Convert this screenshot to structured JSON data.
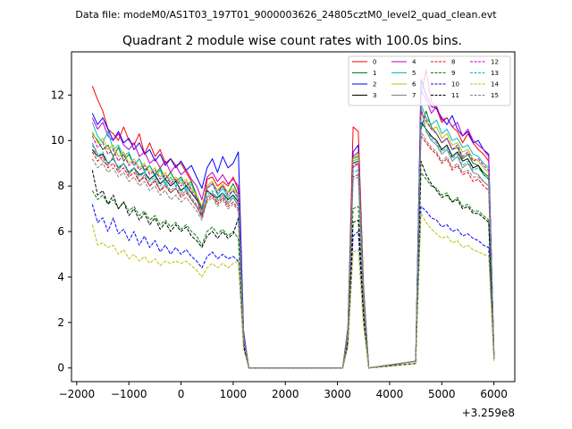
{
  "figure": {
    "suptitle": "Data file: modeM0/AS1T03_197T01_9000003626_24805cztM0_level2_quad_clean.evt"
  },
  "chart_data": {
    "type": "line",
    "title": "Quadrant 2 module wise count rates with 100.0s bins.",
    "xlabel": "",
    "ylabel": "",
    "x_offset_label": "+3.259e8",
    "xlim": [
      -2100,
      6400
    ],
    "ylim": [
      -0.6,
      13.9
    ],
    "xticks": [
      -2000,
      -1000,
      0,
      1000,
      2000,
      3000,
      4000,
      5000,
      6000
    ],
    "xtick_labels": [
      "−2000",
      "−1000",
      "0",
      "1000",
      "2000",
      "3000",
      "4000",
      "5000",
      "6000"
    ],
    "yticks": [
      0,
      2,
      4,
      6,
      8,
      10,
      12
    ],
    "ytick_labels": [
      "0",
      "2",
      "4",
      "6",
      "8",
      "10",
      "12"
    ],
    "grid": false,
    "legend_position": "top-right",
    "legend_columns": 4,
    "x": [
      -1700,
      -1600,
      -1500,
      -1400,
      -1300,
      -1200,
      -1100,
      -1000,
      -900,
      -800,
      -700,
      -600,
      -500,
      -400,
      -300,
      -200,
      -100,
      0,
      100,
      200,
      300,
      400,
      500,
      600,
      700,
      800,
      900,
      1000,
      1100,
      1200,
      1300,
      3100,
      3200,
      3300,
      3400,
      3500,
      3600,
      4500,
      4600,
      4700,
      4800,
      4900,
      5000,
      5100,
      5200,
      5300,
      5400,
      5500,
      5600,
      5700,
      5800,
      5900,
      6000
    ],
    "series": [
      {
        "name": "0",
        "color": "#ff0000",
        "dash": "solid",
        "values": [
          12.4,
          11.8,
          11.3,
          10.5,
          10.3,
          10.0,
          10.6,
          10.0,
          9.8,
          10.3,
          9.4,
          9.9,
          9.3,
          9.6,
          9.0,
          9.2,
          8.9,
          9.0,
          8.6,
          8.2,
          7.5,
          6.7,
          8.3,
          8.4,
          8.0,
          8.2,
          8.0,
          8.4,
          7.8,
          1.5,
          0.0,
          0.0,
          1.8,
          10.6,
          10.4,
          3.6,
          0.0,
          0.3,
          12.0,
          13.1,
          11.7,
          11.4,
          10.8,
          11.0,
          10.6,
          10.4,
          9.9,
          10.3,
          9.9,
          9.6,
          9.4,
          9.1,
          0.5
        ]
      },
      {
        "name": "1",
        "color": "#008000",
        "dash": "solid",
        "values": [
          10.3,
          10.0,
          9.6,
          9.8,
          9.3,
          9.7,
          9.1,
          9.4,
          8.9,
          9.2,
          8.7,
          8.9,
          8.5,
          8.8,
          8.3,
          8.6,
          8.2,
          8.4,
          8.0,
          8.2,
          7.6,
          7.0,
          8.0,
          8.2,
          7.8,
          8.0,
          7.7,
          8.1,
          7.6,
          1.4,
          0.0,
          0.0,
          1.6,
          9.2,
          9.3,
          3.3,
          0.0,
          0.3,
          10.5,
          11.3,
          10.6,
          10.3,
          9.9,
          10.1,
          9.6,
          9.7,
          9.2,
          9.4,
          9.0,
          8.9,
          8.6,
          8.4,
          0.5
        ]
      },
      {
        "name": "2",
        "color": "#0000ff",
        "dash": "solid",
        "values": [
          11.2,
          10.7,
          11.0,
          10.5,
          10.0,
          10.4,
          9.9,
          10.1,
          9.6,
          9.9,
          9.4,
          9.6,
          9.1,
          9.4,
          8.9,
          9.2,
          8.8,
          9.1,
          8.7,
          8.9,
          8.4,
          7.9,
          8.8,
          9.2,
          8.6,
          9.3,
          8.8,
          9.0,
          9.5,
          1.6,
          0.0,
          0.0,
          1.7,
          9.5,
          9.8,
          3.4,
          0.0,
          0.3,
          12.7,
          12.0,
          11.5,
          11.4,
          11.0,
          10.7,
          11.1,
          10.5,
          10.2,
          10.4,
          9.9,
          10.0,
          9.6,
          9.4,
          0.6
        ]
      },
      {
        "name": "3",
        "color": "#000000",
        "dash": "solid",
        "values": [
          9.6,
          9.3,
          9.4,
          9.0,
          9.2,
          8.8,
          9.0,
          8.6,
          8.8,
          8.5,
          8.6,
          8.3,
          8.5,
          8.1,
          8.3,
          8.0,
          8.2,
          7.8,
          8.0,
          7.7,
          7.4,
          7.0,
          7.8,
          7.6,
          7.5,
          7.7,
          7.4,
          7.6,
          7.3,
          1.3,
          0.0,
          0.0,
          1.5,
          9.0,
          9.1,
          3.2,
          0.0,
          0.3,
          10.8,
          10.5,
          10.2,
          10.0,
          9.6,
          9.8,
          9.3,
          9.5,
          9.1,
          9.2,
          8.8,
          8.9,
          8.5,
          8.3,
          0.5
        ]
      },
      {
        "name": "4",
        "color": "#bf00bf",
        "dash": "solid",
        "values": [
          11.0,
          10.5,
          10.8,
          10.2,
          10.0,
          10.3,
          9.8,
          9.6,
          9.9,
          9.3,
          9.5,
          9.0,
          9.2,
          8.8,
          9.1,
          8.6,
          8.9,
          8.5,
          8.7,
          8.3,
          8.0,
          7.4,
          8.4,
          8.6,
          8.2,
          8.5,
          8.1,
          8.3,
          8.0,
          1.5,
          0.0,
          0.0,
          1.7,
          9.3,
          9.5,
          3.3,
          0.0,
          0.3,
          12.2,
          11.8,
          11.2,
          11.5,
          10.9,
          11.0,
          10.6,
          10.8,
          10.2,
          10.5,
          10.0,
          9.8,
          9.6,
          9.3,
          0.6
        ]
      },
      {
        "name": "5",
        "color": "#00bfbf",
        "dash": "solid",
        "values": [
          10.8,
          10.2,
          9.9,
          10.4,
          9.6,
          9.8,
          9.3,
          9.5,
          8.9,
          9.2,
          8.6,
          8.9,
          8.4,
          8.7,
          8.1,
          8.4,
          8.0,
          8.3,
          7.8,
          8.1,
          7.5,
          6.9,
          7.9,
          8.1,
          7.6,
          7.9,
          7.5,
          7.8,
          7.4,
          1.4,
          0.0,
          0.0,
          1.6,
          9.1,
          9.2,
          3.3,
          0.0,
          0.3,
          11.6,
          11.0,
          10.7,
          10.9,
          10.3,
          10.5,
          10.0,
          10.1,
          9.7,
          9.8,
          9.4,
          9.3,
          9.0,
          8.8,
          0.5
        ]
      },
      {
        "name": "6",
        "color": "#bfbf00",
        "dash": "solid",
        "values": [
          10.4,
          9.9,
          10.1,
          9.6,
          9.8,
          9.3,
          9.5,
          9.0,
          9.2,
          8.8,
          9.0,
          8.6,
          8.8,
          8.4,
          8.6,
          8.2,
          8.4,
          8.1,
          8.3,
          7.9,
          7.6,
          7.1,
          8.0,
          8.2,
          7.8,
          8.1,
          7.7,
          7.9,
          7.6,
          1.4,
          0.0,
          0.0,
          1.6,
          9.2,
          9.4,
          3.3,
          0.0,
          0.3,
          11.2,
          10.8,
          10.5,
          10.6,
          10.1,
          10.3,
          9.8,
          9.9,
          9.5,
          9.6,
          9.2,
          9.1,
          8.8,
          8.6,
          0.5
        ]
      },
      {
        "name": "7",
        "color": "#808080",
        "dash": "solid",
        "values": [
          9.9,
          9.4,
          9.1,
          8.9,
          9.3,
          8.7,
          9.0,
          8.5,
          8.8,
          8.2,
          8.5,
          8.0,
          8.3,
          7.8,
          8.1,
          7.7,
          7.9,
          7.6,
          7.8,
          7.4,
          7.1,
          6.6,
          7.5,
          7.7,
          7.3,
          7.6,
          7.2,
          7.5,
          7.1,
          1.3,
          0.0,
          0.0,
          1.5,
          8.8,
          9.0,
          3.1,
          0.0,
          0.3,
          11.5,
          10.4,
          10.0,
          9.8,
          9.4,
          9.6,
          9.1,
          9.3,
          8.8,
          9.0,
          8.6,
          8.5,
          8.2,
          8.0,
          0.5
        ]
      },
      {
        "name": "8",
        "color": "#ff0000",
        "dash": "dashed",
        "values": [
          9.5,
          9.1,
          9.3,
          8.8,
          9.0,
          8.6,
          8.8,
          8.4,
          8.6,
          8.2,
          8.4,
          8.0,
          8.2,
          7.8,
          8.0,
          7.7,
          7.9,
          7.5,
          7.7,
          7.4,
          7.1,
          6.7,
          7.4,
          7.6,
          7.2,
          7.5,
          7.1,
          7.3,
          7.0,
          1.3,
          0.0,
          0.0,
          1.4,
          8.4,
          8.5,
          3.0,
          0.0,
          0.3,
          10.2,
          9.9,
          9.6,
          9.4,
          9.0,
          9.2,
          8.7,
          8.9,
          8.5,
          8.6,
          8.2,
          8.3,
          8.0,
          7.8,
          0.5
        ]
      },
      {
        "name": "9",
        "color": "#008000",
        "dash": "dashed",
        "values": [
          7.8,
          7.4,
          7.6,
          7.2,
          7.4,
          7.0,
          7.3,
          6.9,
          7.1,
          6.7,
          6.9,
          6.5,
          6.7,
          6.3,
          6.5,
          6.2,
          6.4,
          6.1,
          6.3,
          6.0,
          5.8,
          5.4,
          6.0,
          6.2,
          5.9,
          6.1,
          5.8,
          6.0,
          5.7,
          1.1,
          0.0,
          0.0,
          1.2,
          7.0,
          7.1,
          2.5,
          0.0,
          0.2,
          8.6,
          8.3,
          8.0,
          7.9,
          7.6,
          7.7,
          7.3,
          7.5,
          7.1,
          7.2,
          6.9,
          6.9,
          6.7,
          6.5,
          0.4
        ]
      },
      {
        "name": "10",
        "color": "#0000ff",
        "dash": "dashed",
        "values": [
          7.2,
          6.4,
          6.6,
          6.0,
          6.6,
          5.9,
          6.1,
          5.6,
          6.0,
          5.4,
          5.8,
          5.3,
          5.6,
          5.1,
          5.4,
          5.0,
          5.3,
          5.0,
          5.2,
          4.9,
          4.7,
          4.4,
          4.9,
          5.1,
          4.8,
          5.0,
          4.8,
          4.9,
          4.7,
          0.9,
          0.0,
          0.0,
          1.0,
          5.8,
          6.0,
          2.1,
          0.0,
          0.2,
          7.1,
          6.9,
          6.6,
          6.5,
          6.2,
          6.3,
          6.0,
          6.1,
          5.8,
          5.9,
          5.7,
          5.6,
          5.4,
          5.3,
          0.4
        ]
      },
      {
        "name": "11",
        "color": "#000000",
        "dash": "dashed",
        "values": [
          8.7,
          7.6,
          7.8,
          7.2,
          7.6,
          7.0,
          7.3,
          6.7,
          7.0,
          6.5,
          6.8,
          6.3,
          6.6,
          6.1,
          6.4,
          6.0,
          6.3,
          6.0,
          6.2,
          5.8,
          5.6,
          5.3,
          5.8,
          6.0,
          5.7,
          6.0,
          5.7,
          5.9,
          6.6,
          1.1,
          0.0,
          0.0,
          1.2,
          6.4,
          6.5,
          2.3,
          0.0,
          0.2,
          9.1,
          8.5,
          8.1,
          7.8,
          7.5,
          7.6,
          7.3,
          7.4,
          7.0,
          7.1,
          6.8,
          6.8,
          6.6,
          6.4,
          0.4
        ]
      },
      {
        "name": "12",
        "color": "#bf00bf",
        "dash": "dashed",
        "values": [
          10.2,
          9.7,
          9.9,
          9.4,
          9.6,
          9.1,
          9.4,
          8.9,
          9.1,
          8.7,
          8.9,
          8.5,
          8.7,
          8.3,
          8.5,
          8.1,
          8.3,
          8.0,
          8.2,
          7.8,
          7.5,
          7.0,
          7.9,
          8.1,
          7.7,
          8.0,
          7.6,
          7.8,
          7.5,
          1.4,
          0.0,
          0.0,
          1.5,
          8.9,
          9.0,
          3.1,
          0.0,
          0.3,
          11.3,
          10.9,
          10.5,
          10.3,
          9.9,
          10.1,
          9.6,
          9.8,
          9.3,
          9.5,
          9.1,
          9.2,
          8.9,
          8.7,
          0.5
        ]
      },
      {
        "name": "13",
        "color": "#00bfbf",
        "dash": "dashed",
        "values": [
          9.8,
          9.3,
          9.5,
          9.0,
          9.2,
          8.8,
          9.0,
          8.6,
          8.8,
          8.4,
          8.6,
          8.2,
          8.4,
          8.0,
          8.2,
          7.8,
          8.0,
          7.7,
          7.9,
          7.5,
          7.2,
          6.8,
          7.6,
          7.8,
          7.4,
          7.7,
          7.3,
          7.5,
          7.2,
          1.3,
          0.0,
          0.0,
          1.5,
          8.6,
          8.7,
          3.0,
          0.0,
          0.3,
          10.9,
          10.5,
          10.1,
          9.9,
          9.5,
          9.7,
          9.2,
          9.4,
          8.9,
          9.1,
          8.7,
          8.8,
          8.5,
          8.3,
          0.5
        ]
      },
      {
        "name": "14",
        "color": "#bfbf00",
        "dash": "dashed",
        "values": [
          6.3,
          5.4,
          5.5,
          5.3,
          5.4,
          5.0,
          5.2,
          4.8,
          5.0,
          4.7,
          4.9,
          4.6,
          4.8,
          4.5,
          4.7,
          4.6,
          4.7,
          4.6,
          4.7,
          4.5,
          4.3,
          4.0,
          4.4,
          4.6,
          4.4,
          4.6,
          4.4,
          4.6,
          4.7,
          0.8,
          0.0,
          0.0,
          0.9,
          5.1,
          5.2,
          1.8,
          0.0,
          0.2,
          6.8,
          6.4,
          6.1,
          5.9,
          5.7,
          5.8,
          5.5,
          5.6,
          5.3,
          5.4,
          5.2,
          5.1,
          5.0,
          4.9,
          0.3
        ]
      },
      {
        "name": "15",
        "color": "#808080",
        "dash": "dashed",
        "values": [
          9.2,
          8.8,
          9.0,
          8.6,
          8.8,
          8.4,
          8.6,
          8.2,
          8.4,
          8.0,
          8.2,
          7.8,
          8.0,
          7.6,
          7.8,
          7.4,
          7.6,
          7.3,
          7.5,
          7.2,
          6.9,
          6.5,
          7.3,
          7.5,
          7.1,
          7.4,
          7.0,
          7.2,
          6.9,
          1.3,
          0.0,
          0.0,
          1.4,
          8.3,
          8.4,
          2.9,
          0.0,
          0.3,
          10.4,
          10.0,
          9.7,
          9.5,
          9.1,
          9.3,
          8.8,
          9.0,
          8.6,
          8.7,
          8.4,
          8.4,
          8.2,
          8.0,
          0.5
        ]
      }
    ]
  }
}
